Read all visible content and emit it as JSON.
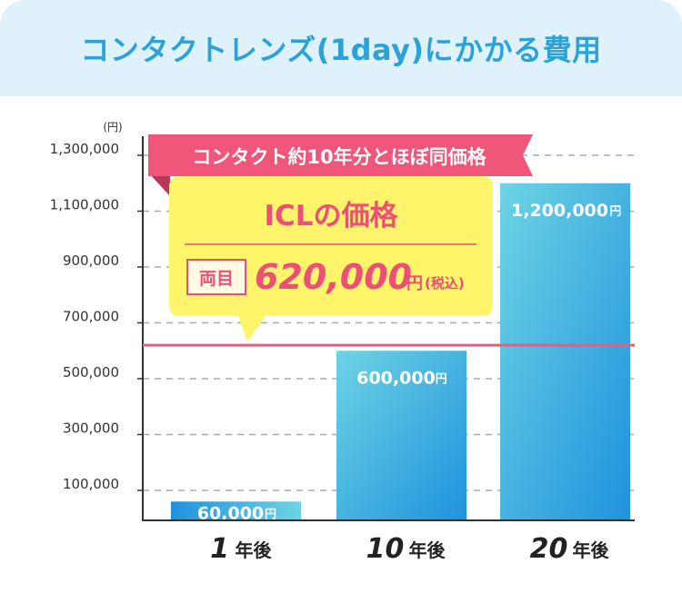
{
  "header": {
    "title": "コンタクトレンズ(1day)にかかる費用"
  },
  "callout": {
    "ribbon_text": "コンタクト約10年分とほぼ同価格",
    "title": "ICLの価格",
    "badge": "両目",
    "price": "620,000",
    "price_unit": "円",
    "price_note": "(税込)"
  },
  "colors": {
    "header_bg": "#dff1fa",
    "title": "#2ba3d9",
    "ribbon": "#f0567a",
    "callout_bg": "#fff56a",
    "reference_line": "#ec5a7c",
    "bar_top": "#6dd4e4",
    "bar_bottom": "#1f92de"
  },
  "chart_data": {
    "type": "bar",
    "y_unit": "(円)",
    "y_ticks": [
      100000,
      300000,
      500000,
      700000,
      900000,
      1100000,
      1300000
    ],
    "y_tick_labels": [
      "100,000",
      "300,000",
      "500,000",
      "700,000",
      "900,000",
      "1,100,000",
      "1,300,000"
    ],
    "ylim": [
      0,
      1400000
    ],
    "grid": true,
    "reference_line": 620000,
    "bars": [
      {
        "category": "1",
        "category_suffix": "年後",
        "value": 60000,
        "value_label": "60,000",
        "unit": "円"
      },
      {
        "category": "10",
        "category_suffix": "年後",
        "value": 600000,
        "value_label": "600,000",
        "unit": "円"
      },
      {
        "category": "20",
        "category_suffix": "年後",
        "value": 1200000,
        "value_label": "1,200,000",
        "unit": "円"
      }
    ]
  }
}
